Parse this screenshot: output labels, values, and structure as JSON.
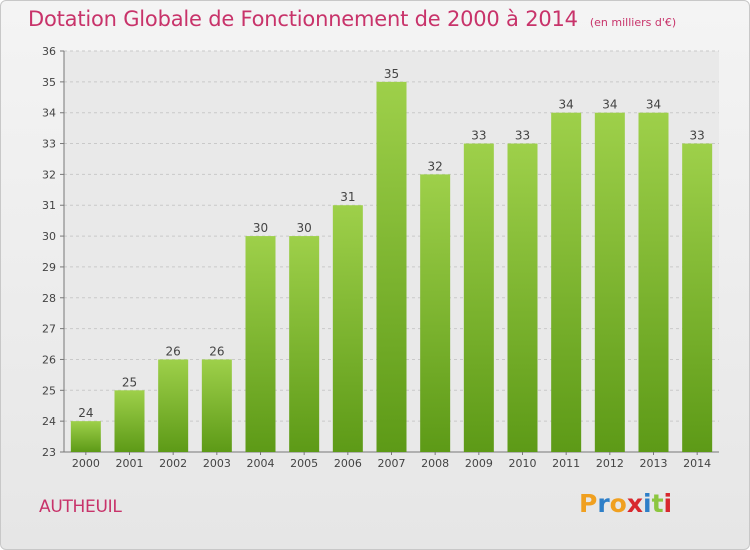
{
  "title": "Dotation Globale de Fonctionnement de 2000 à 2014",
  "unit": "(en milliers d'€)",
  "commune": "AUTHEUIL",
  "logo": {
    "letters": [
      "P",
      "r",
      "o",
      "x",
      "i",
      "t",
      "i"
    ],
    "colors": [
      "#f0a020",
      "#2e7fc8",
      "#f0a020",
      "#d8282e",
      "#2e7fc8",
      "#8cc63f",
      "#d8282e"
    ]
  },
  "colors": {
    "accent": "#c8336a",
    "bar_light": "#9ed04a",
    "bar_dark": "#5d9a17"
  },
  "chart_data": {
    "type": "bar",
    "title": "Dotation Globale de Fonctionnement de 2000 à 2014",
    "xlabel": "",
    "ylabel": "",
    "categories": [
      "2000",
      "2001",
      "2002",
      "2003",
      "2004",
      "2005",
      "2006",
      "2007",
      "2008",
      "2009",
      "2010",
      "2011",
      "2012",
      "2013",
      "2014"
    ],
    "values": [
      24,
      25,
      26,
      26,
      30,
      30,
      31,
      35,
      32,
      33,
      33,
      34,
      34,
      34,
      33
    ],
    "ylim": [
      23,
      36
    ],
    "yticks": [
      23,
      24,
      25,
      26,
      27,
      28,
      29,
      30,
      31,
      32,
      33,
      34,
      35,
      36
    ],
    "grid": true
  }
}
